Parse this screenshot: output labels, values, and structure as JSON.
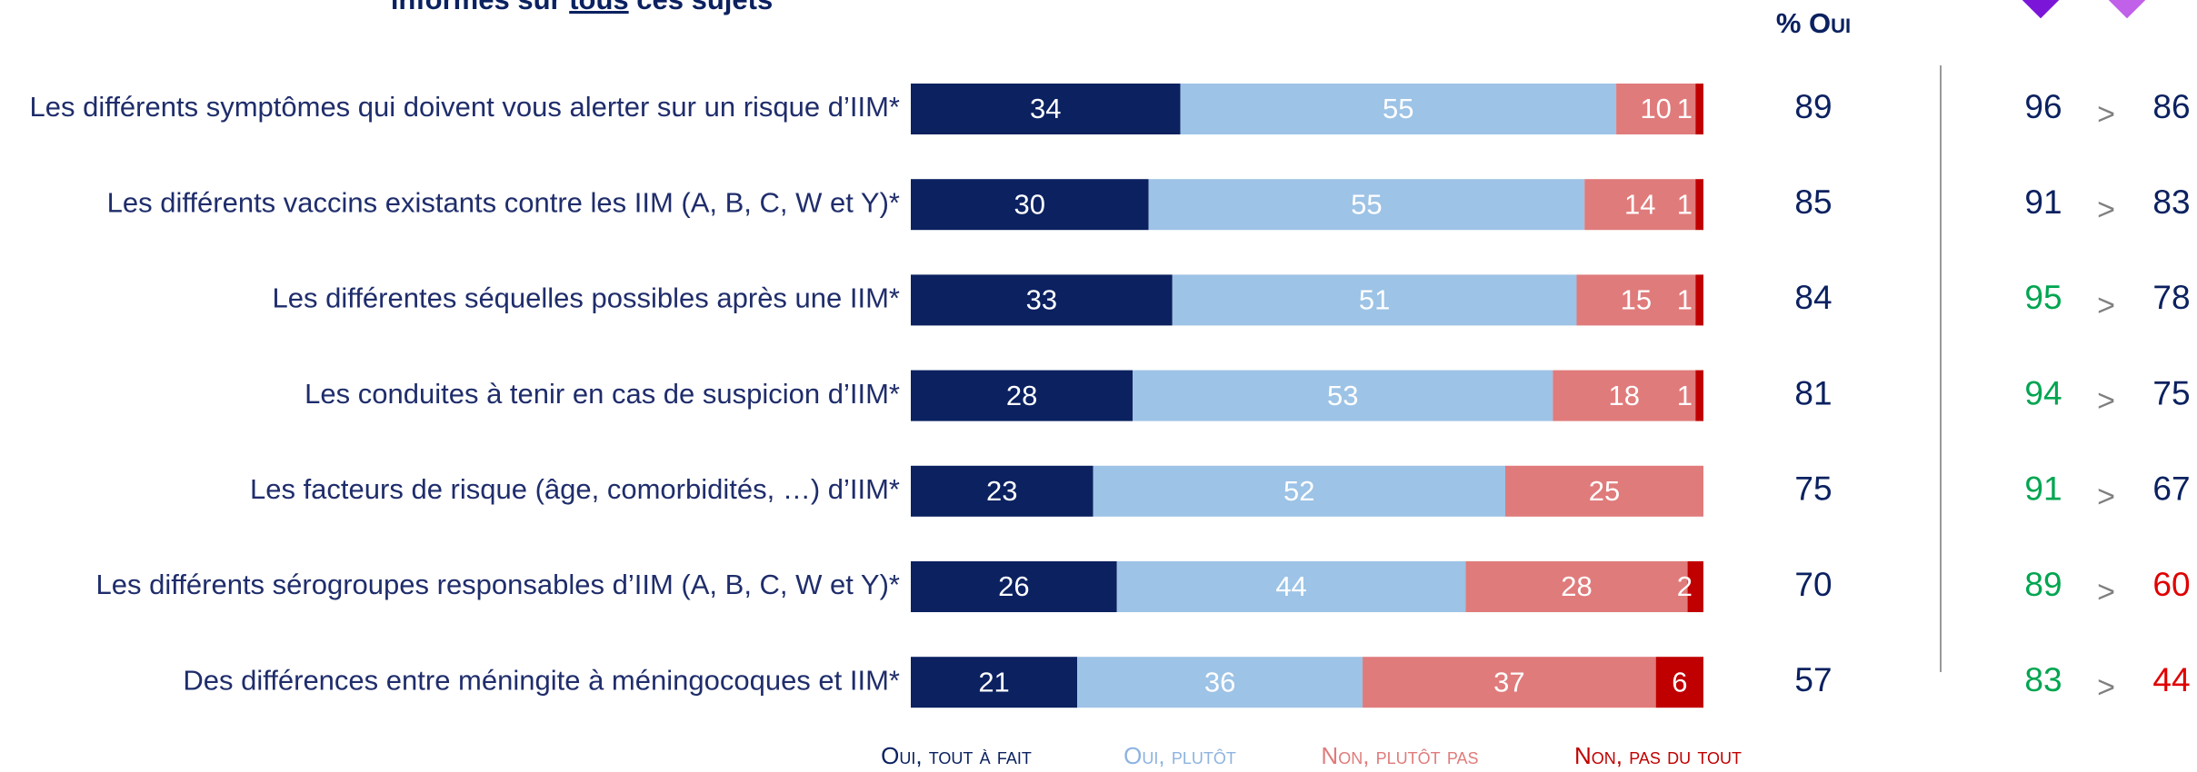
{
  "chart_data": {
    "type": "stacked-bar-horizontal",
    "title_parts": [
      "informés sur ",
      "tous",
      " ces sujets"
    ],
    "categories": [
      "Les différents symptômes qui doivent vous alerter sur un risque d’IIM*",
      "Les différents vaccins existants contre les IIM (A, B, C, W et Y)*",
      "Les différentes séquelles possibles après une IIM*",
      "Les conduites à tenir en cas de suspicion d’IIM*",
      "Les facteurs de risque (âge, comorbidités, …) d’IIM*",
      "Les différents sérogroupes responsables d’IIM (A, B, C, W et Y)*",
      "Des différences entre méningite à méningocoques et IIM*"
    ],
    "xlim": [
      0,
      100
    ],
    "series": [
      {
        "name": "Oui, tout à fait",
        "color": "#0b2160",
        "label_color": "#ffffff",
        "values": [
          34,
          30,
          33,
          28,
          23,
          26,
          21
        ]
      },
      {
        "name": "Oui, plutôt",
        "color": "#9dc3e6",
        "label_color": "#ffffff",
        "values": [
          55,
          55,
          51,
          53,
          52,
          44,
          36
        ]
      },
      {
        "name": "Non, plutôt pas",
        "color": "#e07b7b",
        "label_color": "#ffffff",
        "values": [
          10,
          14,
          15,
          18,
          25,
          28,
          37
        ]
      },
      {
        "name": "Non, pas du tout",
        "color": "#c00000",
        "label_color": "#ffffff",
        "values": [
          1,
          1,
          1,
          1,
          null,
          2,
          6
        ]
      }
    ],
    "oui_header": "% Oui",
    "oui_totals": [
      89,
      85,
      84,
      81,
      75,
      70,
      57
    ],
    "group1": {
      "values": [
        96,
        91,
        95,
        94,
        91,
        89,
        83
      ],
      "colors": [
        "#0b2160",
        "#0b2160",
        "#00a550",
        "#00a550",
        "#00a550",
        "#00a550",
        "#00a550"
      ]
    },
    "group2": {
      "values": [
        86,
        83,
        78,
        75,
        67,
        60,
        44
      ],
      "colors": [
        "#0b2160",
        "#0b2160",
        "#0b2160",
        "#0b2160",
        "#0b2160",
        "#e00000",
        "#e00000"
      ]
    },
    "comparator": ">"
  }
}
